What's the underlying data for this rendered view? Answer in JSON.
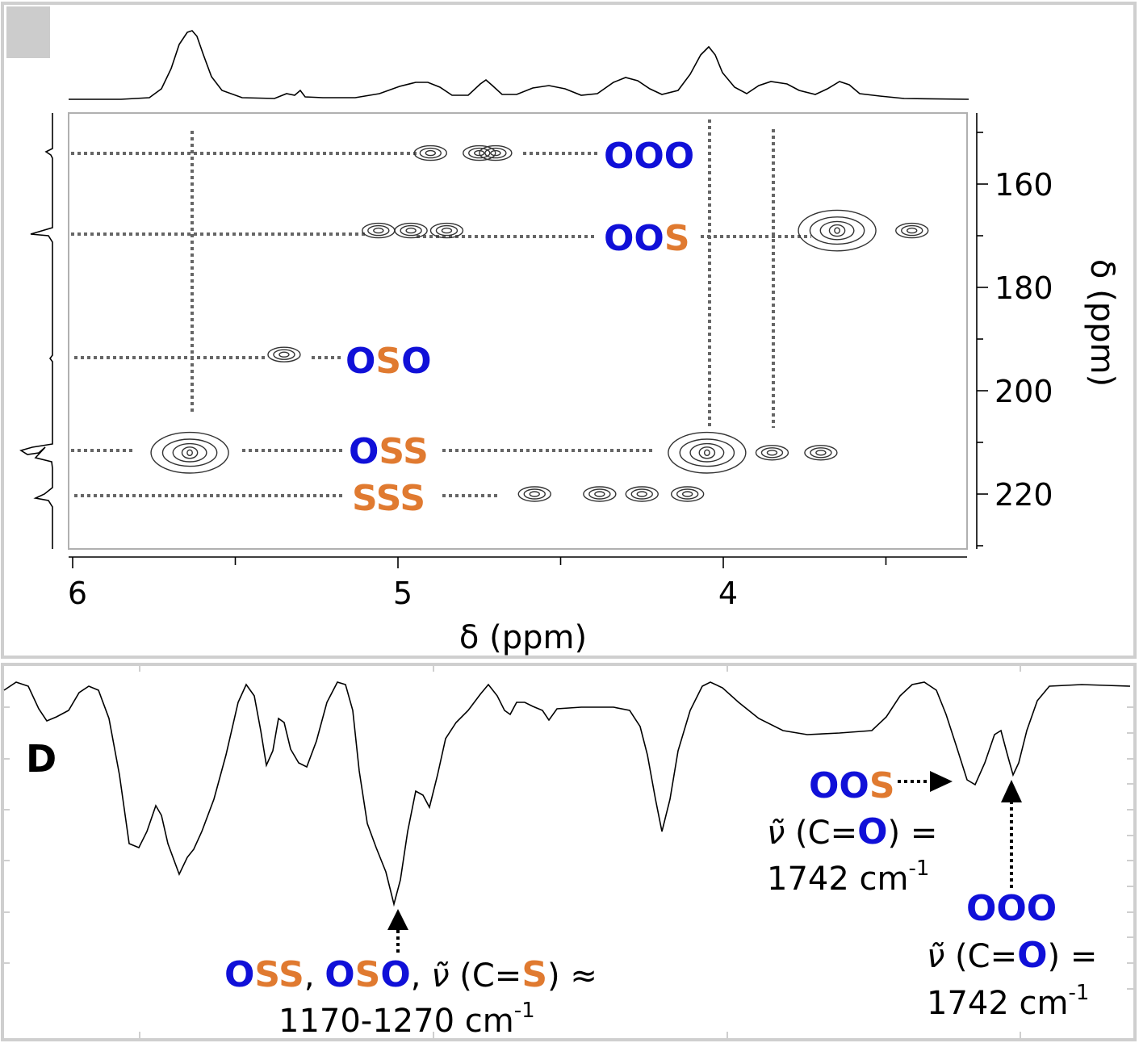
{
  "colors": {
    "oxygen": "#1010d8",
    "sulfur": "#e07a30",
    "guide": "#666666",
    "frame": "#cfcfcf"
  },
  "chart_data": [
    {
      "type": "heatmap",
      "subtype": "2D NMR contour spectrum (HSQC/HMBC style)",
      "xlabel": "δ (ppm)",
      "ylabel": "δ (ppm)",
      "x_ticks": [
        "6",
        "5",
        "4"
      ],
      "y_ticks": [
        "160",
        "180",
        "200",
        "220"
      ],
      "xlim": [
        6.0,
        3.25
      ],
      "ylim": [
        148,
        230
      ],
      "x_reversed": true,
      "y_reversed": true,
      "grid": false,
      "correlations": [
        {
          "label": "OOO",
          "y": 154,
          "x": [
            4.9,
            4.75,
            4.7
          ]
        },
        {
          "label": "OOS",
          "y": 169,
          "x": [
            5.06,
            4.96,
            4.85,
            3.65,
            3.42
          ]
        },
        {
          "label": "OSO",
          "y": 193,
          "x": [
            5.35
          ]
        },
        {
          "label": "OSS",
          "y": 212,
          "x": [
            5.64,
            4.05,
            3.85,
            3.7
          ]
        },
        {
          "label": "SSS",
          "y": 220,
          "x": [
            4.58,
            4.38,
            4.25,
            4.11
          ]
        }
      ],
      "vertical_guides_x": [
        5.64,
        4.04,
        3.84
      ]
    },
    {
      "type": "line",
      "subtype": "IR transmission spectrum",
      "panel": "D",
      "annotations": {
        "oss_label": {
          "codes": [
            "OSS",
            "OSO"
          ],
          "line1_tail": "ν̃ (C=S) ≈",
          "line2": "1170-1270 cm",
          "sup": "-1"
        },
        "oos_label": {
          "code": "OOS",
          "line1": "ν̃ (C=O) =",
          "line2": "1742 cm",
          "sup": "-1"
        },
        "ooo_label": {
          "code": "OOO",
          "line1": "ν̃ (C=O) =",
          "line2": "1742 cm",
          "sup": "-1"
        }
      }
    }
  ]
}
